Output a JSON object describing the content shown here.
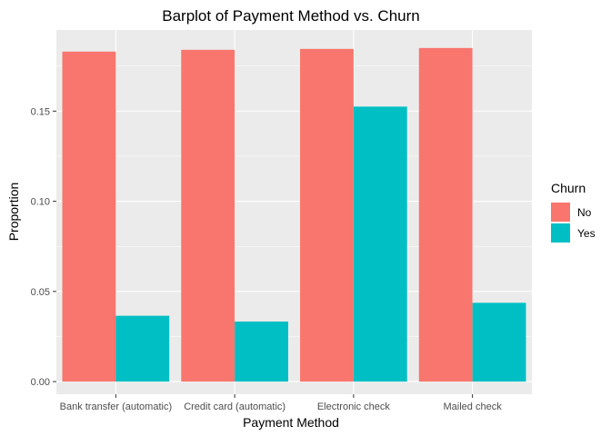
{
  "chart_data": {
    "type": "bar",
    "title": "Barplot of Payment Method vs. Churn",
    "xlabel": "Payment Method",
    "ylabel": "Proportion",
    "categories": [
      "Bank transfer (automatic)",
      "Credit card (automatic)",
      "Electronic check",
      "Mailed check"
    ],
    "series": [
      {
        "name": "No",
        "color": "#F8766D",
        "values": [
          0.183,
          0.184,
          0.1845,
          0.185
        ]
      },
      {
        "name": "Yes",
        "color": "#00BFC4",
        "values": [
          0.0365,
          0.0333,
          0.1525,
          0.0437
        ]
      }
    ],
    "ylim": [
      -0.007,
      0.195
    ],
    "yticks": [
      0.0,
      0.05,
      0.1,
      0.15
    ],
    "ytick_labels": [
      "0.00",
      "0.05",
      "0.10",
      "0.15"
    ],
    "grid": true,
    "panel_background": "#EBEBEB",
    "legend": {
      "title": "Churn",
      "position": "right"
    }
  }
}
